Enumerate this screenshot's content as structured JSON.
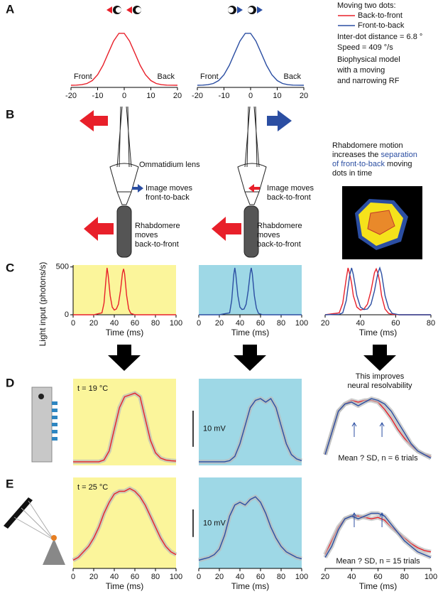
{
  "panel_labels": [
    "A",
    "B",
    "C",
    "D",
    "E"
  ],
  "legend": {
    "title": "Moving two dots:",
    "items": [
      {
        "name": "Back-to-front",
        "color": "#e8202a"
      },
      {
        "name": "Front-to-back",
        "color": "#2b4ea2"
      }
    ],
    "notes": [
      "Inter-dot distance = 6.8 °",
      "Speed = 409 °/s",
      "Biophysical model",
      "with a moving",
      "and narrowing RF"
    ]
  },
  "schematic": {
    "lens": "Ommatidium lens",
    "left_image": [
      "Image moves",
      "front-to-back"
    ],
    "left_rhabdomere": [
      "Rhabdomere",
      "moves",
      "back-to-front"
    ],
    "right_image": [
      "Image moves",
      "back-to-front"
    ],
    "right_rhabdomere": [
      "Rhabdomere",
      "moves",
      "back-to-front"
    ],
    "note": [
      [
        {
          "text": "Rhabdomere motion"
        }
      ],
      [
        {
          "text": "increases the "
        },
        {
          "text": "separation",
          "color": "#2b4ea2"
        }
      ],
      [
        {
          "text": "of front-to-back",
          "color": "#2b4ea2"
        },
        {
          "text": " moving"
        }
      ],
      [
        {
          "text": "dots in time"
        }
      ]
    ]
  },
  "resolvability": [
    "This improves",
    "neural resolvability"
  ],
  "charts": [
    {
      "type": "line",
      "xlim": [
        -20,
        20
      ],
      "ylim": [
        0,
        1.1
      ],
      "xticks": [
        -20,
        -10,
        0,
        10,
        20
      ],
      "annotations": [
        "Front",
        "Back"
      ],
      "x": [
        -20,
        -18,
        -16,
        -14,
        -12,
        -10,
        -8,
        -6,
        -4,
        -2,
        0,
        2,
        4,
        6,
        8,
        10,
        12,
        14,
        16,
        18,
        20
      ],
      "series": [
        {
          "color": "#e8202a",
          "values": [
            0,
            0.003,
            0.011,
            0.034,
            0.089,
            0.198,
            0.375,
            0.607,
            0.835,
            0.98,
            0.98,
            0.835,
            0.607,
            0.375,
            0.198,
            0.089,
            0.034,
            0.011,
            0.003,
            0.001,
            0
          ]
        }
      ]
    },
    {
      "type": "line",
      "xlim": [
        -20,
        20
      ],
      "ylim": [
        0,
        1.1
      ],
      "xticks": [
        -20,
        -10,
        0,
        10,
        20
      ],
      "annotations": [
        "Front",
        "Back"
      ],
      "x": [
        -20,
        -18,
        -16,
        -14,
        -12,
        -10,
        -8,
        -6,
        -4,
        -2,
        0,
        2,
        4,
        6,
        8,
        10,
        12,
        14,
        16,
        18,
        20
      ],
      "series": [
        {
          "color": "#2b4ea2",
          "values": [
            0,
            0.003,
            0.011,
            0.034,
            0.089,
            0.198,
            0.375,
            0.607,
            0.835,
            0.98,
            0.98,
            0.835,
            0.607,
            0.375,
            0.198,
            0.089,
            0.034,
            0.011,
            0.003,
            0.001,
            0
          ]
        }
      ]
    },
    {
      "type": "line",
      "background": "#fbf59b",
      "xlim": [
        0,
        100
      ],
      "ylim": [
        0,
        520
      ],
      "xticks": [
        0,
        20,
        40,
        60,
        80,
        100
      ],
      "yticks": [
        0,
        500
      ],
      "x_label": "Time (ms)",
      "y_label": "Light input (photons/s)",
      "x": [
        0,
        20,
        28,
        30,
        32,
        33,
        34,
        36,
        38,
        40,
        42,
        44,
        46,
        48,
        49,
        50,
        52,
        54,
        56,
        60,
        100
      ],
      "series": [
        {
          "color": "#e8202a",
          "values": [
            0,
            0,
            20,
            120,
            380,
            490,
            420,
            200,
            80,
            50,
            60,
            110,
            250,
            440,
            480,
            430,
            200,
            60,
            15,
            0,
            0
          ]
        }
      ]
    },
    {
      "type": "line",
      "background": "#9ed8e6",
      "xlim": [
        0,
        100
      ],
      "ylim": [
        0,
        520
      ],
      "xticks": [
        0,
        20,
        40,
        60,
        80,
        100
      ],
      "x_label": "Time (ms)",
      "x": [
        0,
        20,
        30,
        32,
        34,
        35,
        36,
        38,
        40,
        42,
        44,
        46,
        48,
        50,
        51,
        52,
        54,
        56,
        58,
        62,
        100
      ],
      "series": [
        {
          "color": "#2b4ea2",
          "values": [
            0,
            0,
            20,
            150,
            420,
            490,
            420,
            200,
            80,
            55,
            60,
            110,
            250,
            440,
            490,
            430,
            200,
            70,
            15,
            0,
            0
          ]
        }
      ]
    },
    {
      "type": "line",
      "xlim": [
        20,
        80
      ],
      "ylim": [
        0,
        520
      ],
      "xticks": [
        20,
        40,
        60,
        80
      ],
      "x_label": "Time (ms)",
      "x": [
        20,
        28,
        30,
        32,
        33,
        34,
        35,
        36,
        38,
        40,
        42,
        44,
        46,
        48,
        49,
        50,
        51,
        52,
        54,
        56,
        58,
        62,
        80
      ],
      "series": [
        {
          "color": "#e8202a",
          "values": [
            0,
            20,
            120,
            380,
            490,
            420,
            330,
            200,
            80,
            50,
            60,
            110,
            250,
            440,
            480,
            430,
            340,
            200,
            60,
            15,
            5,
            0,
            0
          ]
        },
        {
          "color": "#2b4ea2",
          "values": [
            0,
            5,
            20,
            150,
            290,
            420,
            490,
            420,
            200,
            80,
            55,
            60,
            110,
            250,
            350,
            440,
            490,
            430,
            200,
            70,
            15,
            0,
            0
          ]
        }
      ]
    },
    {
      "type": "line",
      "background": "#fbf59b",
      "xlim": [
        0,
        100
      ],
      "ylim": [
        -1,
        23
      ],
      "annotations": [
        "t = 19 °C"
      ],
      "x": [
        0,
        5,
        10,
        15,
        20,
        25,
        30,
        35,
        40,
        45,
        50,
        55,
        60,
        65,
        70,
        75,
        80,
        85,
        90,
        95,
        100
      ],
      "series": [
        {
          "color": "#e8202a",
          "values": [
            0,
            0,
            0,
            0,
            0,
            0,
            0.5,
            3,
            9,
            15,
            18,
            18.5,
            19,
            18,
            12,
            6,
            2.5,
            1,
            0.5,
            0.3,
            0.2
          ]
        }
      ]
    },
    {
      "type": "line",
      "background": "#9ed8e6",
      "xlim": [
        0,
        100
      ],
      "ylim": [
        -1,
        23
      ],
      "scale_bar": {
        "value": 10,
        "label": "10 mV"
      },
      "x": [
        0,
        5,
        10,
        15,
        20,
        25,
        30,
        35,
        40,
        45,
        50,
        55,
        60,
        65,
        70,
        75,
        80,
        85,
        90,
        95,
        100
      ],
      "series": [
        {
          "color": "#2b4ea2",
          "values": [
            0,
            0,
            0,
            0,
            0,
            0,
            0.3,
            1.5,
            5,
            10,
            15,
            17,
            17.5,
            16.5,
            17.5,
            15,
            10,
            5,
            2,
            0.8,
            0.3
          ]
        }
      ]
    },
    {
      "type": "line",
      "xlim": [
        20,
        100
      ],
      "ylim": [
        -1,
        23
      ],
      "annotations": [
        "Mean ? SD, n = 6 trials"
      ],
      "x": [
        20,
        25,
        30,
        35,
        40,
        45,
        50,
        55,
        60,
        65,
        70,
        75,
        80,
        85,
        90,
        95,
        100
      ],
      "series": [
        {
          "color": "#e8202a",
          "values": [
            2,
            8,
            14,
            16,
            17,
            16.5,
            17,
            17,
            16.5,
            14.5,
            12,
            9,
            6.5,
            4.5,
            3,
            2,
            1.5
          ]
        },
        {
          "color": "#2b4ea2",
          "values": [
            2,
            8,
            14,
            16,
            16.5,
            15.5,
            16.5,
            17.5,
            17,
            16,
            14,
            11,
            8,
            5,
            3,
            2,
            1
          ]
        }
      ]
    },
    {
      "type": "line",
      "background": "#fbf59b",
      "xlim": [
        0,
        100
      ],
      "ylim": [
        -2,
        31
      ],
      "xticks": [
        0,
        20,
        40,
        60,
        80,
        100
      ],
      "x_label": "Time (ms)",
      "annotations": [
        "t = 25 °C"
      ],
      "x": [
        0,
        5,
        10,
        15,
        20,
        25,
        30,
        35,
        40,
        45,
        50,
        55,
        60,
        65,
        70,
        75,
        80,
        85,
        90,
        95,
        100
      ],
      "series": [
        {
          "color": "#e8202a",
          "values": [
            1,
            2,
            4,
            6,
            9,
            13,
            18,
            22,
            25,
            26,
            26,
            27,
            26,
            24,
            21,
            17,
            13,
            9,
            6,
            4,
            3
          ]
        }
      ]
    },
    {
      "type": "line",
      "background": "#9ed8e6",
      "xlim": [
        0,
        100
      ],
      "ylim": [
        -2,
        31
      ],
      "xticks": [
        0,
        20,
        40,
        60,
        80,
        100
      ],
      "x_label": "Time (ms)",
      "scale_bar": {
        "value": 10,
        "label": "10 mV"
      },
      "x": [
        0,
        5,
        10,
        15,
        20,
        25,
        30,
        35,
        40,
        45,
        50,
        55,
        60,
        65,
        70,
        75,
        80,
        85,
        90,
        95,
        100
      ],
      "series": [
        {
          "color": "#2b4ea2",
          "values": [
            1,
            1.5,
            2,
            3,
            5,
            10,
            17,
            21,
            22,
            21,
            23,
            24,
            22,
            18,
            13,
            9,
            6,
            4,
            3,
            2,
            1.5
          ]
        }
      ]
    },
    {
      "type": "line",
      "xlim": [
        20,
        100
      ],
      "ylim": [
        -2,
        31
      ],
      "xticks": [
        20,
        40,
        60,
        80,
        100
      ],
      "x_label": "Time (ms)",
      "annotations": [
        "Mean ? SD, n = 15 trials"
      ],
      "x": [
        20,
        25,
        30,
        35,
        40,
        45,
        50,
        55,
        60,
        65,
        70,
        75,
        80,
        85,
        90,
        95,
        100
      ],
      "series": [
        {
          "color": "#e8202a",
          "values": [
            3,
            8,
            13,
            16,
            17,
            17,
            16.5,
            16,
            16.5,
            15.5,
            13,
            11,
            9,
            7,
            5.5,
            4.5,
            4
          ]
        },
        {
          "color": "#2b4ea2",
          "values": [
            2,
            6,
            12,
            16,
            17,
            16,
            17,
            18,
            18,
            17,
            14,
            11,
            8,
            6,
            4,
            3,
            2
          ]
        }
      ]
    }
  ]
}
